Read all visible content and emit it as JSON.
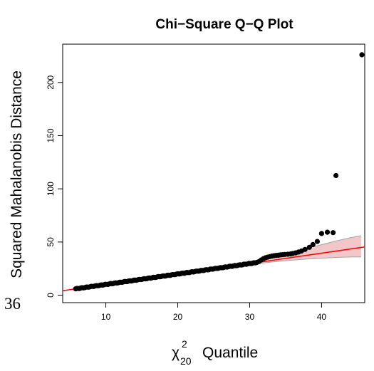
{
  "chart_data": {
    "type": "scatter",
    "title": "Chi−Square Q−Q Plot",
    "xlabel": {
      "symbol": "χ",
      "superscript": "2",
      "subscript": "20",
      "text": "Quantile"
    },
    "ylabel": "Squared Mahalanobis Distance",
    "stray_label": "36",
    "xlim": [
      4,
      46
    ],
    "ylim": [
      -7,
      236
    ],
    "xticks": [
      10,
      20,
      30,
      40
    ],
    "yticks": [
      0,
      50,
      100,
      150,
      200
    ],
    "grid": false,
    "colors": {
      "points": "#000000",
      "fit_line": "#ff0000",
      "band_fill": "#f2c7c9",
      "band_edge": "#a3a3a3"
    },
    "fit_line": {
      "intercept": 0.3,
      "slope": 0.98
    },
    "band": [
      [
        5.5,
        5.6,
        5.8
      ],
      [
        10,
        9.9,
        10.1
      ],
      [
        15,
        14.6,
        15.2
      ],
      [
        20,
        19.4,
        20.3
      ],
      [
        25,
        24.2,
        25.6
      ],
      [
        28,
        27.0,
        29.1
      ],
      [
        30,
        28.8,
        31.5
      ],
      [
        32,
        30.4,
        34.0
      ],
      [
        34,
        31.8,
        37.0
      ],
      [
        36,
        33.0,
        40.5
      ],
      [
        38,
        34.0,
        44.0
      ],
      [
        40,
        34.8,
        47.5
      ],
      [
        42,
        35.5,
        51.0
      ],
      [
        44,
        35.9,
        54.0
      ],
      [
        45.5,
        36.0,
        56.0
      ]
    ],
    "bulk_points": {
      "x_start": 5.8,
      "x_end": 30.8,
      "count": 140
    },
    "tail_points": [
      [
        31.0,
        30.8
      ],
      [
        31.3,
        31.6
      ],
      [
        31.6,
        33.0
      ],
      [
        31.9,
        34.3
      ],
      [
        32.2,
        35.2
      ],
      [
        32.5,
        35.8
      ],
      [
        32.8,
        36.3
      ],
      [
        33.1,
        36.8
      ],
      [
        33.4,
        37.1
      ],
      [
        33.7,
        37.4
      ],
      [
        34.0,
        37.6
      ],
      [
        34.3,
        37.9
      ],
      [
        34.6,
        38.1
      ],
      [
        34.9,
        38.3
      ],
      [
        35.3,
        38.5
      ],
      [
        35.7,
        38.8
      ],
      [
        36.0,
        39.2
      ],
      [
        36.4,
        39.8
      ],
      [
        36.8,
        40.6
      ],
      [
        37.2,
        41.5
      ],
      [
        37.7,
        43.0
      ],
      [
        38.3,
        45.0
      ],
      [
        38.8,
        47.6
      ],
      [
        39.4,
        50.5
      ],
      [
        40.0,
        58.0
      ],
      [
        40.8,
        59.2
      ],
      [
        41.6,
        58.8
      ],
      [
        42.0,
        112.5
      ],
      [
        45.6,
        226
      ]
    ]
  }
}
